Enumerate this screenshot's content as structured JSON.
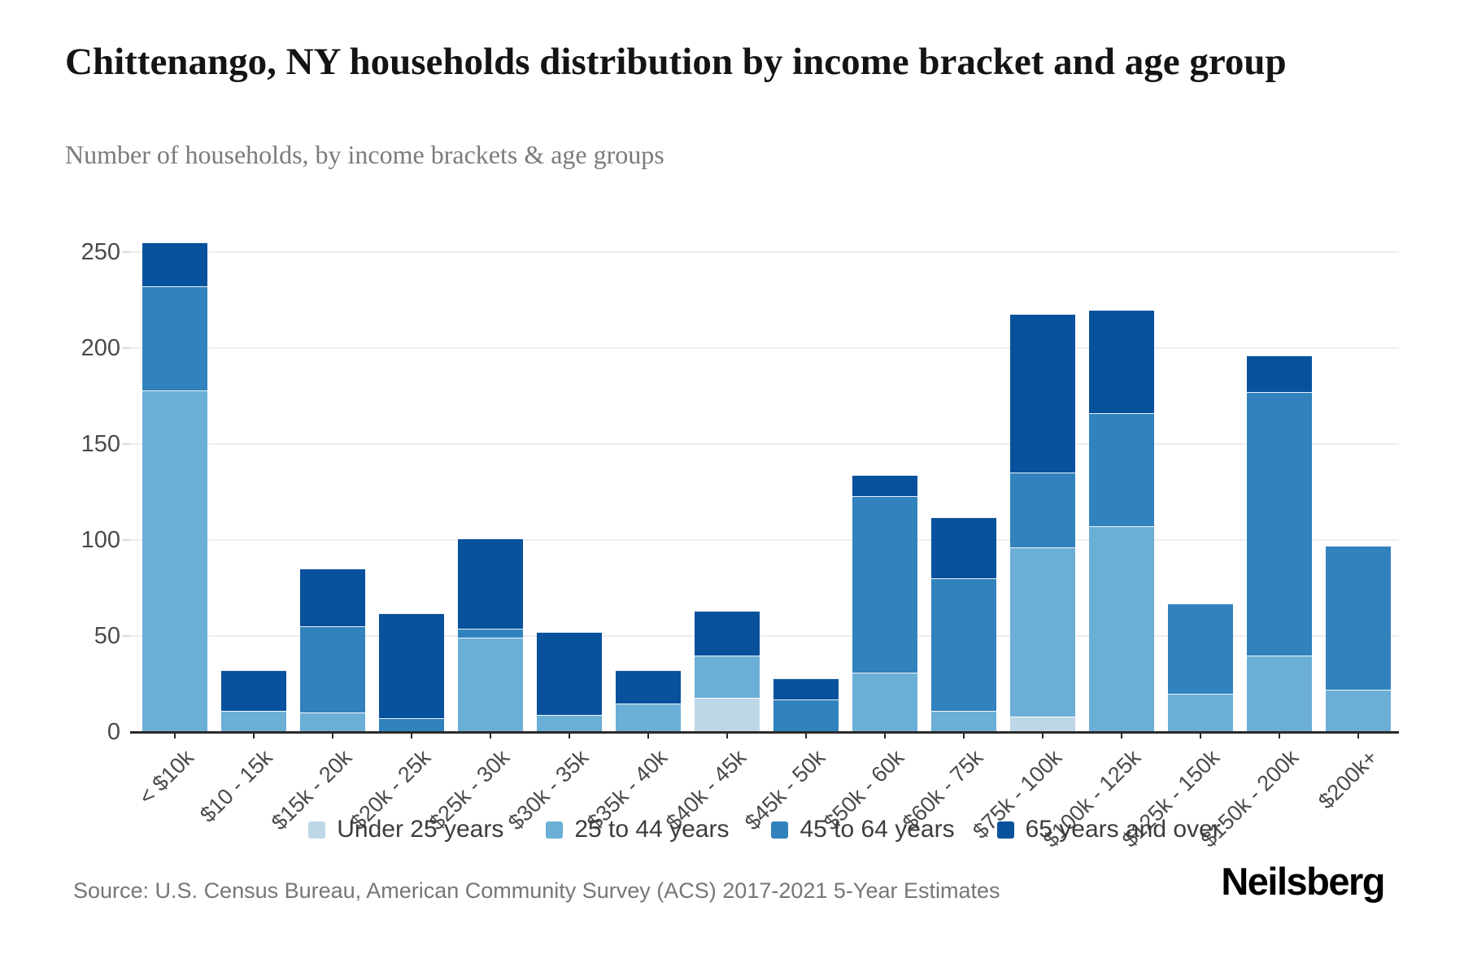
{
  "header": {
    "title": "Chittenango, NY households distribution by income bracket and age group",
    "subtitle": "Number of households, by income brackets & age groups"
  },
  "footer": {
    "source": "Source: U.S. Census Bureau, American Community Survey (ACS) 2017-2021 5-Year Estimates",
    "logo": "Neilsberg"
  },
  "colors": {
    "under_25": "#bdd7e7",
    "age_25_44": "#6baed6",
    "age_45_64": "#3182bd",
    "age_65_over": "#08519c",
    "gridline": "#ededed",
    "axis_line": "#2a2a2a",
    "axis_label": "#4a4a4a",
    "title_text": "#141414",
    "subtitle_text": "#7b7b7b",
    "source_text": "#767676"
  },
  "chart_data": {
    "type": "bar",
    "stacked": true,
    "title": "Chittenango, NY households distribution by income bracket and age group",
    "subtitle": "Number of households, by income brackets & age groups",
    "xlabel": "",
    "ylabel": "Number of households",
    "grid": true,
    "legend_position": "bottom",
    "ylim": [
      0,
      255
    ],
    "yticks": [
      0,
      50,
      100,
      150,
      200,
      250
    ],
    "categories": [
      "< $10k",
      "$10 - 15k",
      "$15k - 20k",
      "$20k - 25k",
      "$25k - 30k",
      "$30k - 35k",
      "$35k - 40k",
      "$40k - 45k",
      "$45k - 50k",
      "$50k - 60k",
      "$60k - 75k",
      "$75k - 100k",
      "$100k - 125k",
      "$125k - 150k",
      "$150k - 200k",
      "$200k+"
    ],
    "series": [
      {
        "name": "Under 25 years",
        "color": "#bdd7e7",
        "values": [
          0,
          0,
          0,
          0,
          0,
          0,
          0,
          18,
          0,
          0,
          0,
          8,
          0,
          0,
          0,
          0
        ]
      },
      {
        "name": "25 to 44 years",
        "color": "#6baed6",
        "values": [
          178,
          11,
          10,
          0,
          49,
          9,
          15,
          22,
          0,
          31,
          11,
          88,
          107,
          20,
          40,
          22
        ]
      },
      {
        "name": "45 to 64 years",
        "color": "#3182bd",
        "values": [
          54,
          0,
          45,
          7,
          5,
          0,
          0,
          0,
          17,
          92,
          69,
          39,
          59,
          47,
          137,
          75
        ]
      },
      {
        "name": "65 years and over",
        "color": "#08519c",
        "values": [
          23,
          21,
          30,
          55,
          47,
          43,
          17,
          23,
          11,
          11,
          32,
          83,
          54,
          0,
          19,
          0
        ]
      }
    ],
    "totals": [
      255,
      32,
      85,
      62,
      101,
      52,
      32,
      63,
      28,
      134,
      112,
      218,
      220,
      67,
      196,
      97
    ]
  }
}
